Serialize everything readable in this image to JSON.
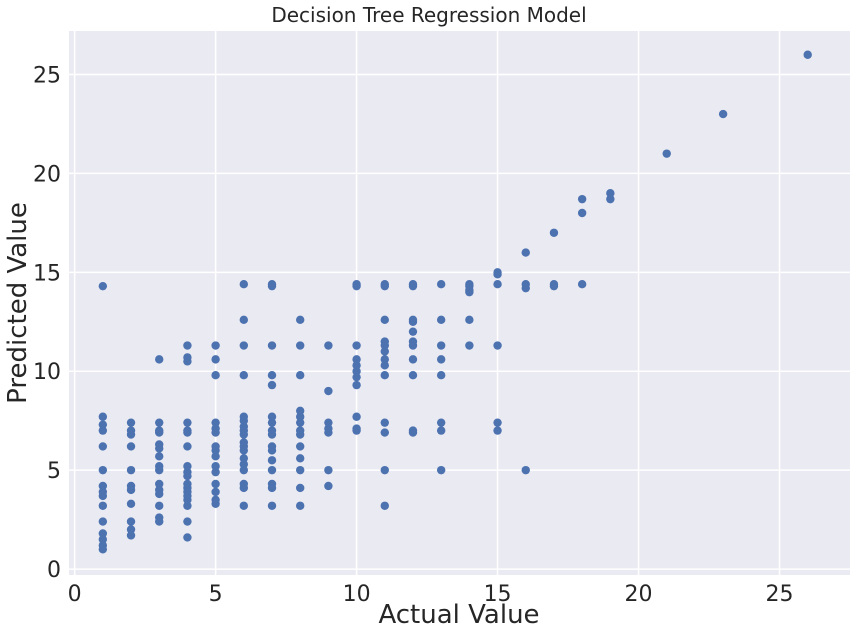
{
  "chart_data": {
    "type": "scatter",
    "title": "Decision Tree Regression Model",
    "xlabel": "Actual Value",
    "ylabel": "Predicted Value",
    "xlim": [
      -0.2,
      27.5
    ],
    "ylim": [
      -0.3,
      27.2
    ],
    "xticks": [
      0,
      5,
      10,
      15,
      20,
      25
    ],
    "yticks": [
      0,
      5,
      10,
      15,
      20,
      25
    ],
    "grid": true,
    "background": "#eaeaf2",
    "point_color": "#4c72b0",
    "points": [
      [
        1,
        1.0
      ],
      [
        1,
        1.2
      ],
      [
        1,
        1.5
      ],
      [
        1,
        1.8
      ],
      [
        1,
        2.4
      ],
      [
        1,
        3.2
      ],
      [
        1,
        3.7
      ],
      [
        1,
        3.9
      ],
      [
        1,
        4.2
      ],
      [
        1,
        5.0
      ],
      [
        1,
        6.2
      ],
      [
        1,
        7.0
      ],
      [
        1,
        7.3
      ],
      [
        1,
        7.7
      ],
      [
        1,
        14.3
      ],
      [
        2,
        1.7
      ],
      [
        2,
        2.0
      ],
      [
        2,
        2.4
      ],
      [
        2,
        3.3
      ],
      [
        2,
        4.0
      ],
      [
        2,
        4.2
      ],
      [
        2,
        5.0
      ],
      [
        2,
        6.2
      ],
      [
        2,
        6.8
      ],
      [
        2,
        7.0
      ],
      [
        2,
        7.4
      ],
      [
        3,
        2.4
      ],
      [
        3,
        2.6
      ],
      [
        3,
        3.2
      ],
      [
        3,
        3.8
      ],
      [
        3,
        4.0
      ],
      [
        3,
        4.3
      ],
      [
        3,
        5.0
      ],
      [
        3,
        5.2
      ],
      [
        3,
        5.7
      ],
      [
        3,
        6.1
      ],
      [
        3,
        6.3
      ],
      [
        3,
        6.9
      ],
      [
        3,
        7.0
      ],
      [
        3,
        7.4
      ],
      [
        3,
        10.6
      ],
      [
        4,
        1.6
      ],
      [
        4,
        2.4
      ],
      [
        4,
        3.2
      ],
      [
        4,
        3.5
      ],
      [
        4,
        3.7
      ],
      [
        4,
        3.9
      ],
      [
        4,
        4.1
      ],
      [
        4,
        4.3
      ],
      [
        4,
        4.7
      ],
      [
        4,
        4.9
      ],
      [
        4,
        5.2
      ],
      [
        4,
        6.2
      ],
      [
        4,
        6.9
      ],
      [
        4,
        7.0
      ],
      [
        4,
        7.4
      ],
      [
        4,
        10.5
      ],
      [
        4,
        10.7
      ],
      [
        4,
        11.3
      ],
      [
        5,
        3.3
      ],
      [
        5,
        3.5
      ],
      [
        5,
        3.9
      ],
      [
        5,
        4.3
      ],
      [
        5,
        4.9
      ],
      [
        5,
        5.2
      ],
      [
        5,
        5.7
      ],
      [
        5,
        6.0
      ],
      [
        5,
        6.2
      ],
      [
        5,
        6.9
      ],
      [
        5,
        7.1
      ],
      [
        5,
        7.4
      ],
      [
        5,
        9.8
      ],
      [
        5,
        10.6
      ],
      [
        5,
        11.3
      ],
      [
        6,
        3.2
      ],
      [
        6,
        4.1
      ],
      [
        6,
        4.3
      ],
      [
        6,
        5.0
      ],
      [
        6,
        5.3
      ],
      [
        6,
        5.6
      ],
      [
        6,
        6.0
      ],
      [
        6,
        6.2
      ],
      [
        6,
        6.4
      ],
      [
        6,
        6.8
      ],
      [
        6,
        7.0
      ],
      [
        6,
        7.2
      ],
      [
        6,
        7.5
      ],
      [
        6,
        7.7
      ],
      [
        6,
        9.8
      ],
      [
        6,
        11.3
      ],
      [
        6,
        12.6
      ],
      [
        6,
        14.4
      ],
      [
        7,
        3.2
      ],
      [
        7,
        4.1
      ],
      [
        7,
        4.3
      ],
      [
        7,
        5.0
      ],
      [
        7,
        5.5
      ],
      [
        7,
        6.0
      ],
      [
        7,
        6.2
      ],
      [
        7,
        6.8
      ],
      [
        7,
        7.0
      ],
      [
        7,
        7.4
      ],
      [
        7,
        7.7
      ],
      [
        7,
        9.3
      ],
      [
        7,
        9.8
      ],
      [
        7,
        11.3
      ],
      [
        7,
        14.3
      ],
      [
        7,
        14.4
      ],
      [
        8,
        3.2
      ],
      [
        8,
        4.1
      ],
      [
        8,
        5.0
      ],
      [
        8,
        5.6
      ],
      [
        8,
        6.2
      ],
      [
        8,
        6.8
      ],
      [
        8,
        7.0
      ],
      [
        8,
        7.4
      ],
      [
        8,
        7.7
      ],
      [
        8,
        8.0
      ],
      [
        8,
        9.8
      ],
      [
        8,
        11.3
      ],
      [
        8,
        12.6
      ],
      [
        9,
        4.2
      ],
      [
        9,
        5.0
      ],
      [
        9,
        6.9
      ],
      [
        9,
        7.1
      ],
      [
        9,
        7.4
      ],
      [
        9,
        9.0
      ],
      [
        9,
        11.3
      ],
      [
        10,
        7.0
      ],
      [
        10,
        7.1
      ],
      [
        10,
        7.7
      ],
      [
        10,
        9.3
      ],
      [
        10,
        9.7
      ],
      [
        10,
        10.0
      ],
      [
        10,
        10.3
      ],
      [
        10,
        10.6
      ],
      [
        10,
        11.3
      ],
      [
        10,
        14.3
      ],
      [
        10,
        14.4
      ],
      [
        11,
        3.2
      ],
      [
        11,
        5.0
      ],
      [
        11,
        6.9
      ],
      [
        11,
        7.4
      ],
      [
        11,
        9.8
      ],
      [
        11,
        10.3
      ],
      [
        11,
        10.6
      ],
      [
        11,
        11.0
      ],
      [
        11,
        11.3
      ],
      [
        11,
        11.5
      ],
      [
        11,
        12.6
      ],
      [
        11,
        14.3
      ],
      [
        11,
        14.4
      ],
      [
        12,
        6.9
      ],
      [
        12,
        7.0
      ],
      [
        12,
        9.8
      ],
      [
        12,
        10.6
      ],
      [
        12,
        11.3
      ],
      [
        12,
        11.5
      ],
      [
        12,
        12.0
      ],
      [
        12,
        12.5
      ],
      [
        12,
        12.6
      ],
      [
        12,
        14.3
      ],
      [
        12,
        14.4
      ],
      [
        13,
        5.0
      ],
      [
        13,
        7.0
      ],
      [
        13,
        7.4
      ],
      [
        13,
        9.8
      ],
      [
        13,
        10.6
      ],
      [
        13,
        11.3
      ],
      [
        13,
        12.6
      ],
      [
        13,
        14.4
      ],
      [
        14,
        11.3
      ],
      [
        14,
        12.6
      ],
      [
        14,
        14.0
      ],
      [
        14,
        14.1
      ],
      [
        14,
        14.3
      ],
      [
        14,
        14.4
      ],
      [
        15,
        7.0
      ],
      [
        15,
        7.4
      ],
      [
        15,
        11.3
      ],
      [
        15,
        14.4
      ],
      [
        15,
        14.9
      ],
      [
        15,
        15.0
      ],
      [
        16,
        5.0
      ],
      [
        16,
        14.2
      ],
      [
        16,
        14.4
      ],
      [
        16,
        16.0
      ],
      [
        17,
        14.3
      ],
      [
        17,
        14.4
      ],
      [
        17,
        17.0
      ],
      [
        18,
        14.4
      ],
      [
        18,
        18.0
      ],
      [
        18,
        18.7
      ],
      [
        19,
        18.7
      ],
      [
        19,
        19.0
      ],
      [
        21,
        21.0
      ],
      [
        23,
        23.0
      ],
      [
        26,
        26.0
      ]
    ]
  }
}
